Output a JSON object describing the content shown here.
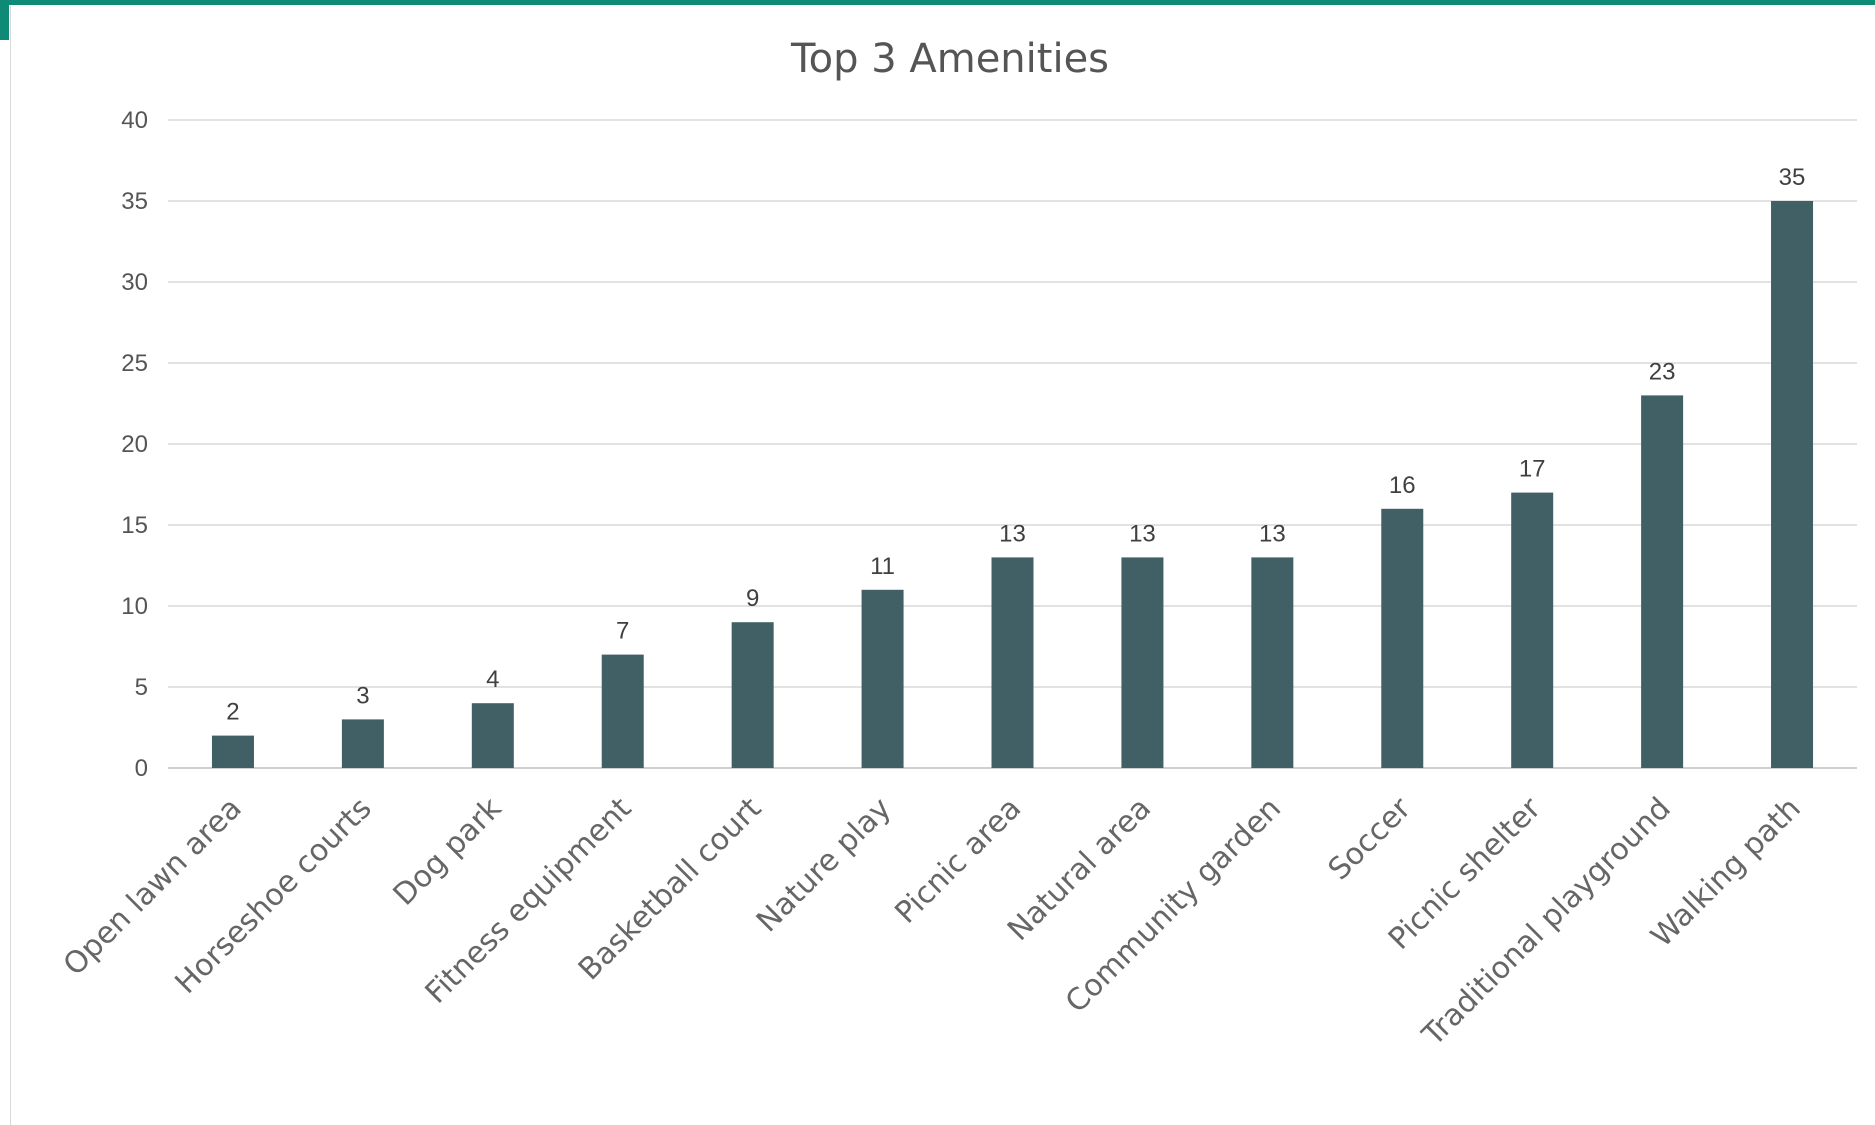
{
  "chart_data": {
    "type": "bar",
    "title": "Top 3 Amenities",
    "xlabel": "",
    "ylabel": "",
    "categories": [
      "Open lawn area",
      "Horseshoe courts",
      "Dog park",
      "Fitness equipment",
      "Basketball court",
      "Nature play",
      "Picnic area",
      "Natural area",
      "Community garden",
      "Soccer",
      "Picnic shelter",
      "Traditional playground",
      "Walking path"
    ],
    "values": [
      2,
      3,
      4,
      7,
      9,
      11,
      13,
      13,
      13,
      16,
      17,
      23,
      35
    ],
    "ylim": [
      0,
      40
    ],
    "yticks": [
      0,
      5,
      10,
      15,
      20,
      25,
      30,
      35,
      40
    ],
    "grid": true,
    "legend": "none",
    "data_labels": true,
    "bar_color": "#406066",
    "grid_color": "#d9d9d9",
    "accent_color": "#0f8a76"
  }
}
